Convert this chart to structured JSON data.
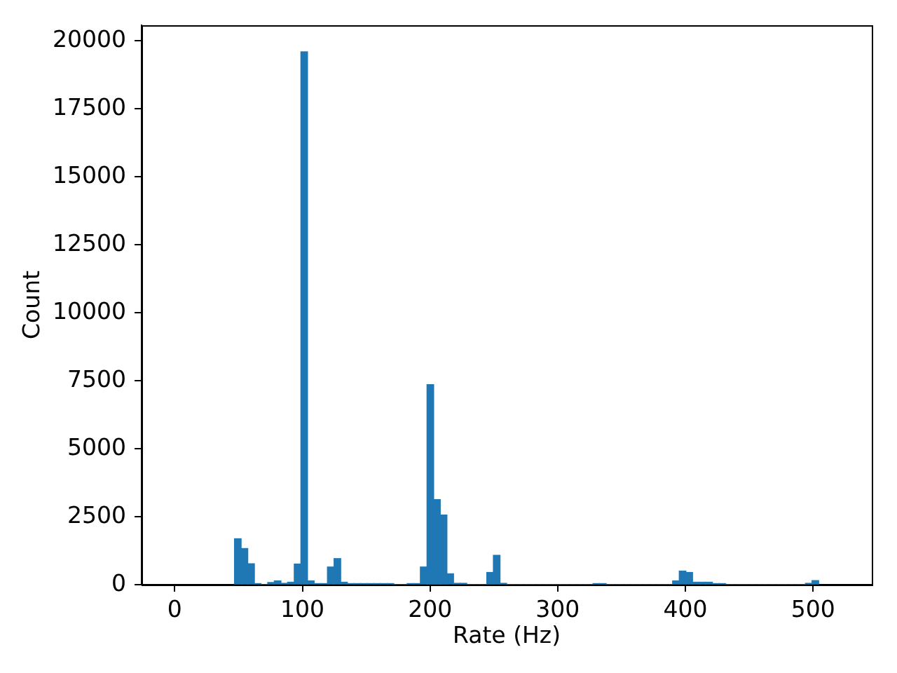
{
  "chart_data": {
    "type": "histogram",
    "xlabel": "Rate (Hz)",
    "ylabel": "Count",
    "color": "#1f77b4",
    "bins": [
      46.8,
      52,
      57.2,
      62.4,
      67.6,
      72.8,
      78,
      83.2,
      88.4,
      93.6,
      98.8,
      104,
      109.2,
      114.4,
      119.6,
      124.8,
      130,
      135.2,
      140.4,
      145.6,
      150.8,
      156,
      161.2,
      166.4,
      171.6,
      176.8,
      182,
      187.2,
      192.4,
      197.6,
      202.8,
      208,
      213.2,
      218.4,
      223.6,
      228.8,
      234,
      239.2,
      244.4,
      249.6,
      254.8,
      260,
      265.2,
      270.4,
      275.6,
      280.8,
      286,
      291.2,
      296.4,
      301.6,
      306.8,
      312,
      317.2,
      322.4,
      327.6,
      332.8,
      338,
      343.2,
      348.4,
      353.6,
      358.8,
      364,
      369.2,
      374.4,
      379.6,
      384.8,
      390,
      395.2,
      400.4,
      405.6,
      410.8,
      416,
      421.2,
      426.4,
      431.6,
      436.8,
      442,
      447.2,
      452.4,
      457.6,
      462.8,
      468,
      473.2,
      478.4,
      483.6,
      488.8,
      494,
      499.2,
      504.4
    ],
    "values": [
      1690,
      1330,
      770,
      40,
      0,
      80,
      140,
      50,
      90,
      760,
      19600,
      140,
      40,
      40,
      650,
      960,
      90,
      40,
      40,
      40,
      40,
      40,
      40,
      40,
      0,
      0,
      40,
      40,
      650,
      7360,
      3130,
      2560,
      400,
      50,
      50,
      0,
      0,
      0,
      450,
      1080,
      50,
      0,
      0,
      0,
      0,
      0,
      0,
      0,
      0,
      0,
      0,
      0,
      0,
      0,
      40,
      40,
      0,
      0,
      0,
      0,
      0,
      0,
      0,
      0,
      0,
      0,
      140,
      500,
      450,
      90,
      90,
      90,
      40,
      40,
      0,
      0,
      0,
      0,
      0,
      0,
      0,
      0,
      0,
      0,
      0,
      0,
      50,
      150
    ],
    "xlim": [
      -26,
      546
    ],
    "ylim": [
      0,
      20580
    ],
    "xticks": [
      0,
      100,
      200,
      300,
      400,
      500
    ],
    "yticks": [
      0,
      2500,
      5000,
      7500,
      10000,
      12500,
      15000,
      17500,
      20000
    ]
  }
}
